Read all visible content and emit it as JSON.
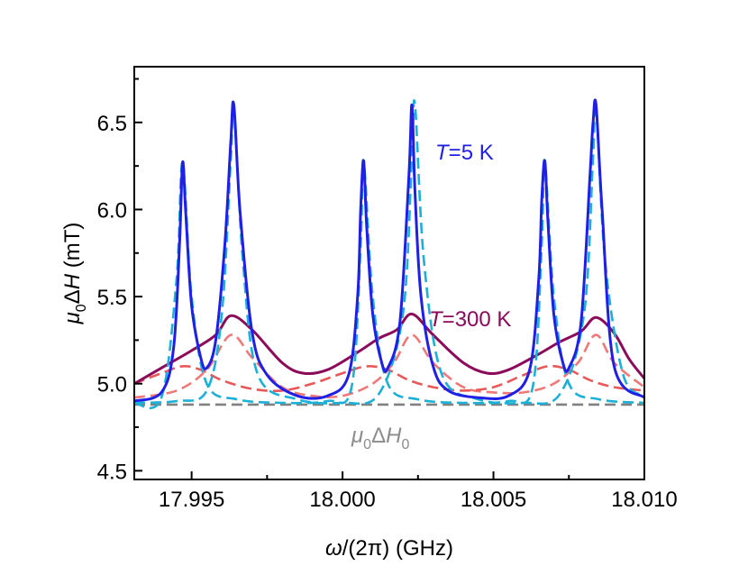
{
  "chart_data": {
    "type": "line",
    "xlabel_parts": {
      "italic": "ω",
      "rest": "/(2π) (GHz)"
    },
    "ylabel_parts": {
      "italic1": "μ",
      "sub": "0",
      "mid": "Δ",
      "italic2": "H",
      "rest": " (mT)"
    },
    "xlim": [
      17.9931,
      18.01
    ],
    "ylim": [
      4.45,
      6.82
    ],
    "xticks": [
      17.995,
      18.0,
      18.005,
      18.01
    ],
    "xtick_labels": [
      "17.995",
      "18.000",
      "18.005",
      "18.010"
    ],
    "yticks": [
      4.5,
      5.0,
      5.5,
      6.0,
      6.5
    ],
    "ytick_labels": [
      "4.5",
      "5.0",
      "5.5",
      "6.0",
      "6.5"
    ],
    "annotations": {
      "t5": {
        "italic": "T",
        "rest": "=5 K",
        "color": "#1f1fe6"
      },
      "t300": {
        "italic": "T",
        "rest": "=300 K",
        "color": "#8b0a5a"
      },
      "dh0": {
        "italic1": "μ",
        "sub1": "0",
        "mid": "Δ",
        "italic2": "H",
        "sub2": "0",
        "color": "#8c8c8c"
      }
    },
    "series": [
      {
        "key": "t5_total",
        "color": "#1f1fe6",
        "style": "solid",
        "x": [
          17.9931,
          17.994,
          17.9944,
          17.9946,
          17.9947,
          17.9948,
          17.995,
          17.9953,
          17.9955,
          17.9958,
          17.9961,
          17.9963,
          17.9964,
          17.9966,
          17.997,
          17.9975,
          17.9985,
          17.9995,
          18.0002,
          18.0005,
          18.0006,
          18.0007,
          18.0008,
          18.001,
          18.0013,
          18.0015,
          18.0019,
          18.0022,
          18.0023,
          18.0024,
          18.0026,
          18.003,
          18.0035,
          18.0045,
          18.0055,
          18.0062,
          18.0065,
          18.0066,
          18.0067,
          18.0068,
          18.007,
          18.0073,
          18.0075,
          18.0079,
          18.0082,
          18.0083,
          18.0084,
          18.0086,
          18.009,
          18.01
        ],
        "y": [
          4.9,
          4.95,
          5.2,
          5.8,
          6.27,
          6.0,
          5.45,
          5.15,
          5.09,
          5.25,
          5.8,
          6.4,
          6.6,
          6.0,
          5.3,
          5.05,
          4.93,
          4.93,
          5.05,
          5.5,
          6.0,
          6.28,
          5.9,
          5.4,
          5.12,
          5.09,
          5.35,
          6.2,
          6.6,
          6.1,
          5.5,
          5.1,
          4.96,
          4.92,
          4.93,
          5.08,
          5.6,
          6.05,
          6.28,
          5.95,
          5.4,
          5.12,
          5.09,
          5.35,
          6.2,
          6.5,
          6.6,
          6.0,
          5.1,
          4.92
        ]
      },
      {
        "key": "t300_total",
        "color": "#8b0a5a",
        "style": "solid",
        "x": [
          17.9931,
          17.994,
          17.995,
          17.9958,
          17.9963,
          17.997,
          17.998,
          17.9987,
          17.9995,
          18.0005,
          18.0012,
          18.0018,
          18.0023,
          18.003,
          18.004,
          18.0048,
          18.0055,
          18.0065,
          18.0072,
          18.0079,
          18.0084,
          18.009,
          18.0095,
          18.01
        ],
        "y": [
          5.0,
          5.09,
          5.19,
          5.28,
          5.39,
          5.31,
          5.12,
          5.06,
          5.08,
          5.18,
          5.26,
          5.31,
          5.4,
          5.28,
          5.12,
          5.06,
          5.08,
          5.17,
          5.24,
          5.3,
          5.38,
          5.29,
          5.14,
          5.03
        ]
      },
      {
        "key": "t300_peak_a",
        "color": "#e85858",
        "style": "dashed",
        "x": [
          17.9931,
          17.994,
          17.9947,
          17.9953,
          17.996,
          17.997,
          17.998,
          17.999,
          18.0,
          18.0008,
          18.0015,
          18.0022,
          18.003,
          18.004,
          18.005,
          18.006,
          18.0068,
          18.0075,
          18.0082,
          18.009,
          18.01
        ],
        "y": [
          5.0,
          5.06,
          5.1,
          5.08,
          5.02,
          4.97,
          4.96,
          5.0,
          5.06,
          5.1,
          5.08,
          5.02,
          4.98,
          4.96,
          4.98,
          5.05,
          5.1,
          5.08,
          5.02,
          4.98,
          4.96
        ]
      },
      {
        "key": "t300_peak_b",
        "color": "#f07878",
        "style": "dashed",
        "x": [
          17.9931,
          17.9945,
          17.9955,
          17.9963,
          17.997,
          17.998,
          17.999,
          18.0,
          18.001,
          18.0017,
          18.0023,
          18.003,
          18.004,
          18.005,
          18.006,
          18.007,
          18.0078,
          18.0084,
          18.009,
          18.01
        ],
        "y": [
          4.92,
          4.96,
          5.08,
          5.28,
          5.15,
          4.98,
          4.93,
          4.93,
          5.0,
          5.12,
          5.28,
          5.12,
          4.98,
          4.95,
          4.95,
          5.0,
          5.12,
          5.28,
          5.12,
          4.98
        ]
      },
      {
        "key": "t5_peak_a",
        "color": "#1ab0d8",
        "style": "dashed",
        "x": [
          17.9931,
          17.994,
          17.9945,
          17.9947,
          17.995,
          17.9955,
          17.9965,
          17.998,
          17.9995,
          18.0003,
          18.0006,
          18.0007,
          18.001,
          18.0015,
          18.0025,
          18.004,
          18.0055,
          18.0063,
          18.0066,
          18.0067,
          18.007,
          18.0075,
          18.0085,
          18.01
        ],
        "y": [
          4.89,
          4.92,
          5.6,
          6.27,
          5.5,
          5.0,
          4.91,
          4.89,
          4.9,
          4.98,
          5.8,
          6.28,
          5.5,
          5.0,
          4.91,
          4.89,
          4.9,
          4.98,
          5.8,
          6.28,
          5.5,
          5.0,
          4.91,
          4.89
        ]
      },
      {
        "key": "t5_peak_b",
        "color": "#1ab0d8",
        "style": "dashed",
        "x": [
          17.9931,
          17.9945,
          17.9955,
          17.996,
          17.9963,
          17.9964,
          17.9967,
          17.9972,
          17.9985,
          18.0,
          18.0012,
          18.002,
          18.0023,
          18.0024,
          18.0027,
          18.0033,
          18.0045,
          18.006,
          18.0072,
          18.008,
          18.0083,
          18.0084,
          18.0087,
          18.0093,
          18.01
        ],
        "y": [
          4.89,
          4.9,
          4.96,
          5.4,
          6.3,
          6.6,
          5.7,
          5.05,
          4.91,
          4.89,
          4.94,
          5.4,
          6.3,
          6.6,
          5.7,
          5.05,
          4.91,
          4.89,
          4.94,
          5.4,
          6.3,
          6.6,
          5.7,
          5.05,
          4.93
        ]
      },
      {
        "key": "baseline",
        "color": "#808080",
        "style": "dashed",
        "x": [
          17.9931,
          18.01
        ],
        "y": [
          4.88,
          4.88
        ]
      }
    ]
  }
}
